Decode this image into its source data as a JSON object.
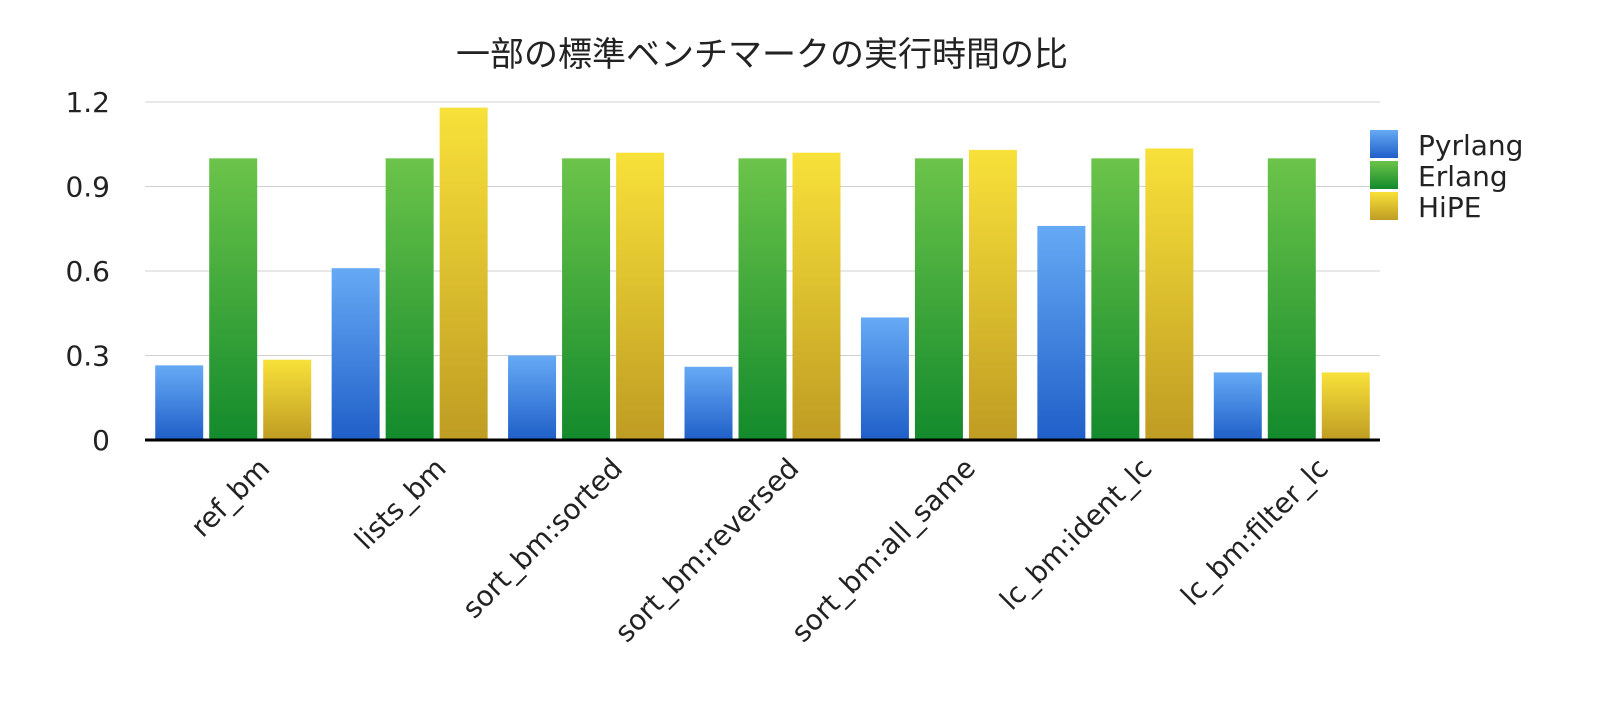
{
  "chart_data": {
    "type": "bar",
    "title": "一部の標準ベンチマークの実行時間の比",
    "xlabel": "",
    "ylabel": "",
    "ylim": [
      0,
      1.2
    ],
    "yticks": [
      0,
      0.3,
      0.6,
      0.9,
      1.2
    ],
    "ytick_labels": [
      "0",
      "0.3",
      "0.6",
      "0.9",
      "1.2"
    ],
    "grid": true,
    "legend_position": "right",
    "categories": [
      "ref_bm",
      "lists_bm",
      "sort_bm:sorted",
      "sort_bm:reversed",
      "sort_bm:all_same",
      "lc_bm:ident_lc",
      "lc_bm:filter_lc"
    ],
    "series": [
      {
        "name": "Pyrlang",
        "color_top": "#66aaf5",
        "color_bottom": "#1f5fc8",
        "values": [
          0.265,
          0.61,
          0.3,
          0.26,
          0.435,
          0.76,
          0.24
        ]
      },
      {
        "name": "Erlang",
        "color_top": "#6cc44a",
        "color_bottom": "#138a2c",
        "values": [
          1.0,
          1.0,
          1.0,
          1.0,
          1.0,
          1.0,
          1.0
        ]
      },
      {
        "name": "HiPE",
        "color_top": "#f8e13a",
        "color_bottom": "#bf9c23",
        "values": [
          0.285,
          1.18,
          1.02,
          1.02,
          1.03,
          1.035,
          0.24
        ]
      }
    ]
  }
}
